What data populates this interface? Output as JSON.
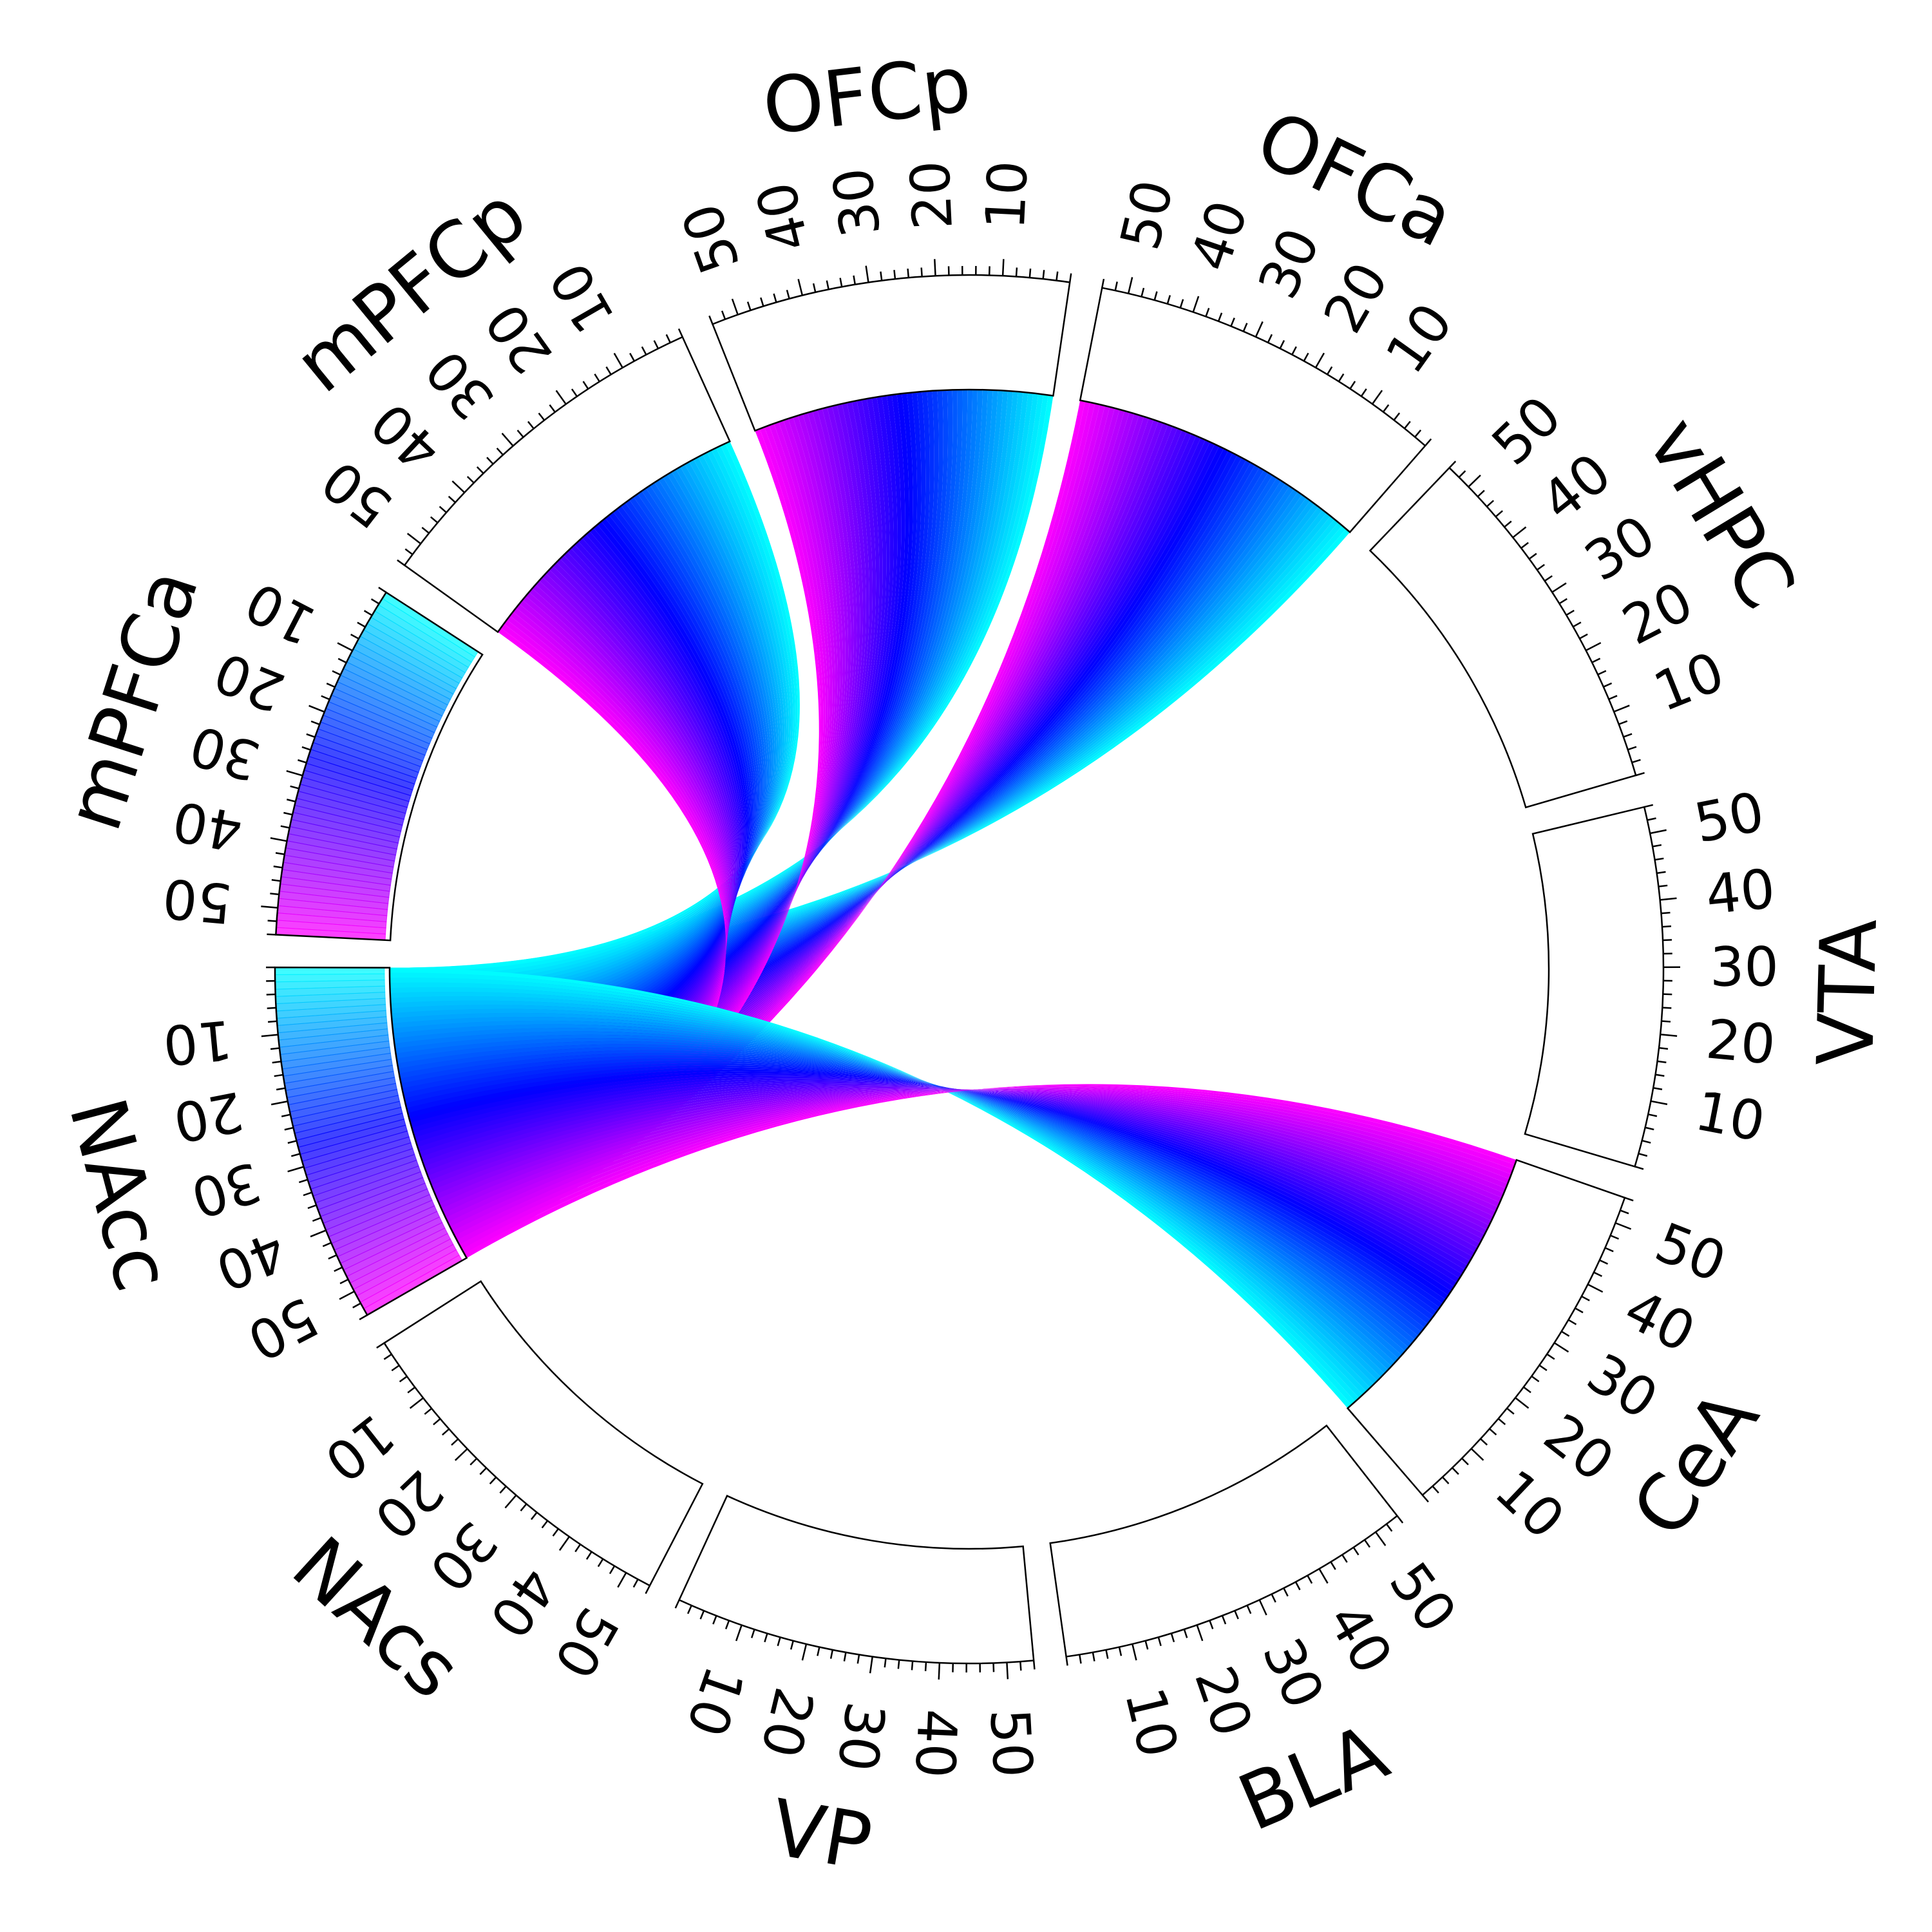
{
  "sectors": [
    {
      "name": "VTA"
    },
    {
      "name": "CeA"
    },
    {
      "name": "BLA"
    },
    {
      "name": "VP"
    },
    {
      "name": "NAcs"
    },
    {
      "name": "NAcc"
    },
    {
      "name": "mPFCa"
    },
    {
      "name": "mPFCp"
    },
    {
      "name": "OFCp"
    },
    {
      "name": "OFCa"
    },
    {
      "name": "vHPC"
    }
  ],
  "axis": {
    "min": 0,
    "max": 54,
    "tick_labels": [
      "10",
      "20",
      "30",
      "40",
      "50"
    ]
  },
  "colors": {
    "gradient_low": "#00ffff",
    "gradient_mid": "#0000ff",
    "gradient_high": "#ff00ff",
    "filled_track_sectors": [
      "NAcc",
      "mPFCa"
    ]
  },
  "links": [
    {
      "from": "OFCa",
      "to": "NAcc"
    },
    {
      "from": "OFCp",
      "to": "NAcc"
    },
    {
      "from": "mPFCp",
      "to": "NAcc"
    },
    {
      "from": "CeA",
      "to": "NAcc"
    }
  ]
}
